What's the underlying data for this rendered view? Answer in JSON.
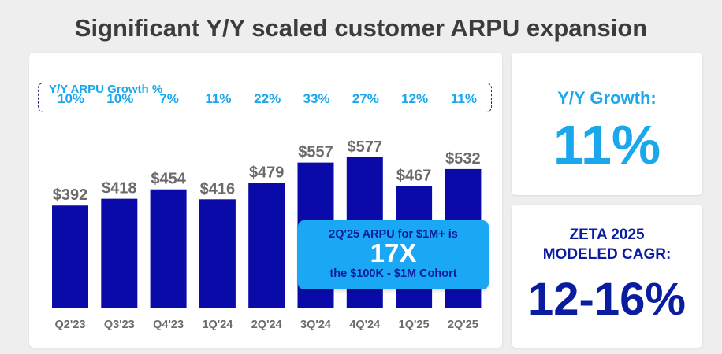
{
  "title": "Significant Y/Y scaled customer ARPU expansion",
  "chart_data": {
    "type": "bar",
    "categories": [
      "Q2'23",
      "Q3'23",
      "Q4'23",
      "1Q'24",
      "2Q'24",
      "3Q'24",
      "4Q'24",
      "1Q'25",
      "2Q'25"
    ],
    "values": [
      392,
      418,
      454,
      416,
      479,
      557,
      577,
      467,
      532
    ],
    "value_labels": [
      "$392",
      "$418",
      "$454",
      "$416",
      "$479",
      "$557",
      "$577",
      "$467",
      "$532"
    ],
    "growth_label": "Y/Y ARPU Growth %",
    "growth": [
      "10%",
      "10%",
      "7%",
      "11%",
      "22%",
      "33%",
      "27%",
      "12%",
      "11%"
    ],
    "bar_color": "#0a0aa8",
    "ylim": [
      0,
      600
    ],
    "grid": false
  },
  "callout": {
    "line1": "2Q'25 ARPU for $1M+ is",
    "line2": "17X",
    "line3": "the $100K - $1M Cohort"
  },
  "yy_growth": {
    "label": "Y/Y Growth:",
    "value": "11%"
  },
  "cagr": {
    "label_line1": "ZETA 2025",
    "label_line2": "MODELED CAGR:",
    "value": "12-16%"
  }
}
